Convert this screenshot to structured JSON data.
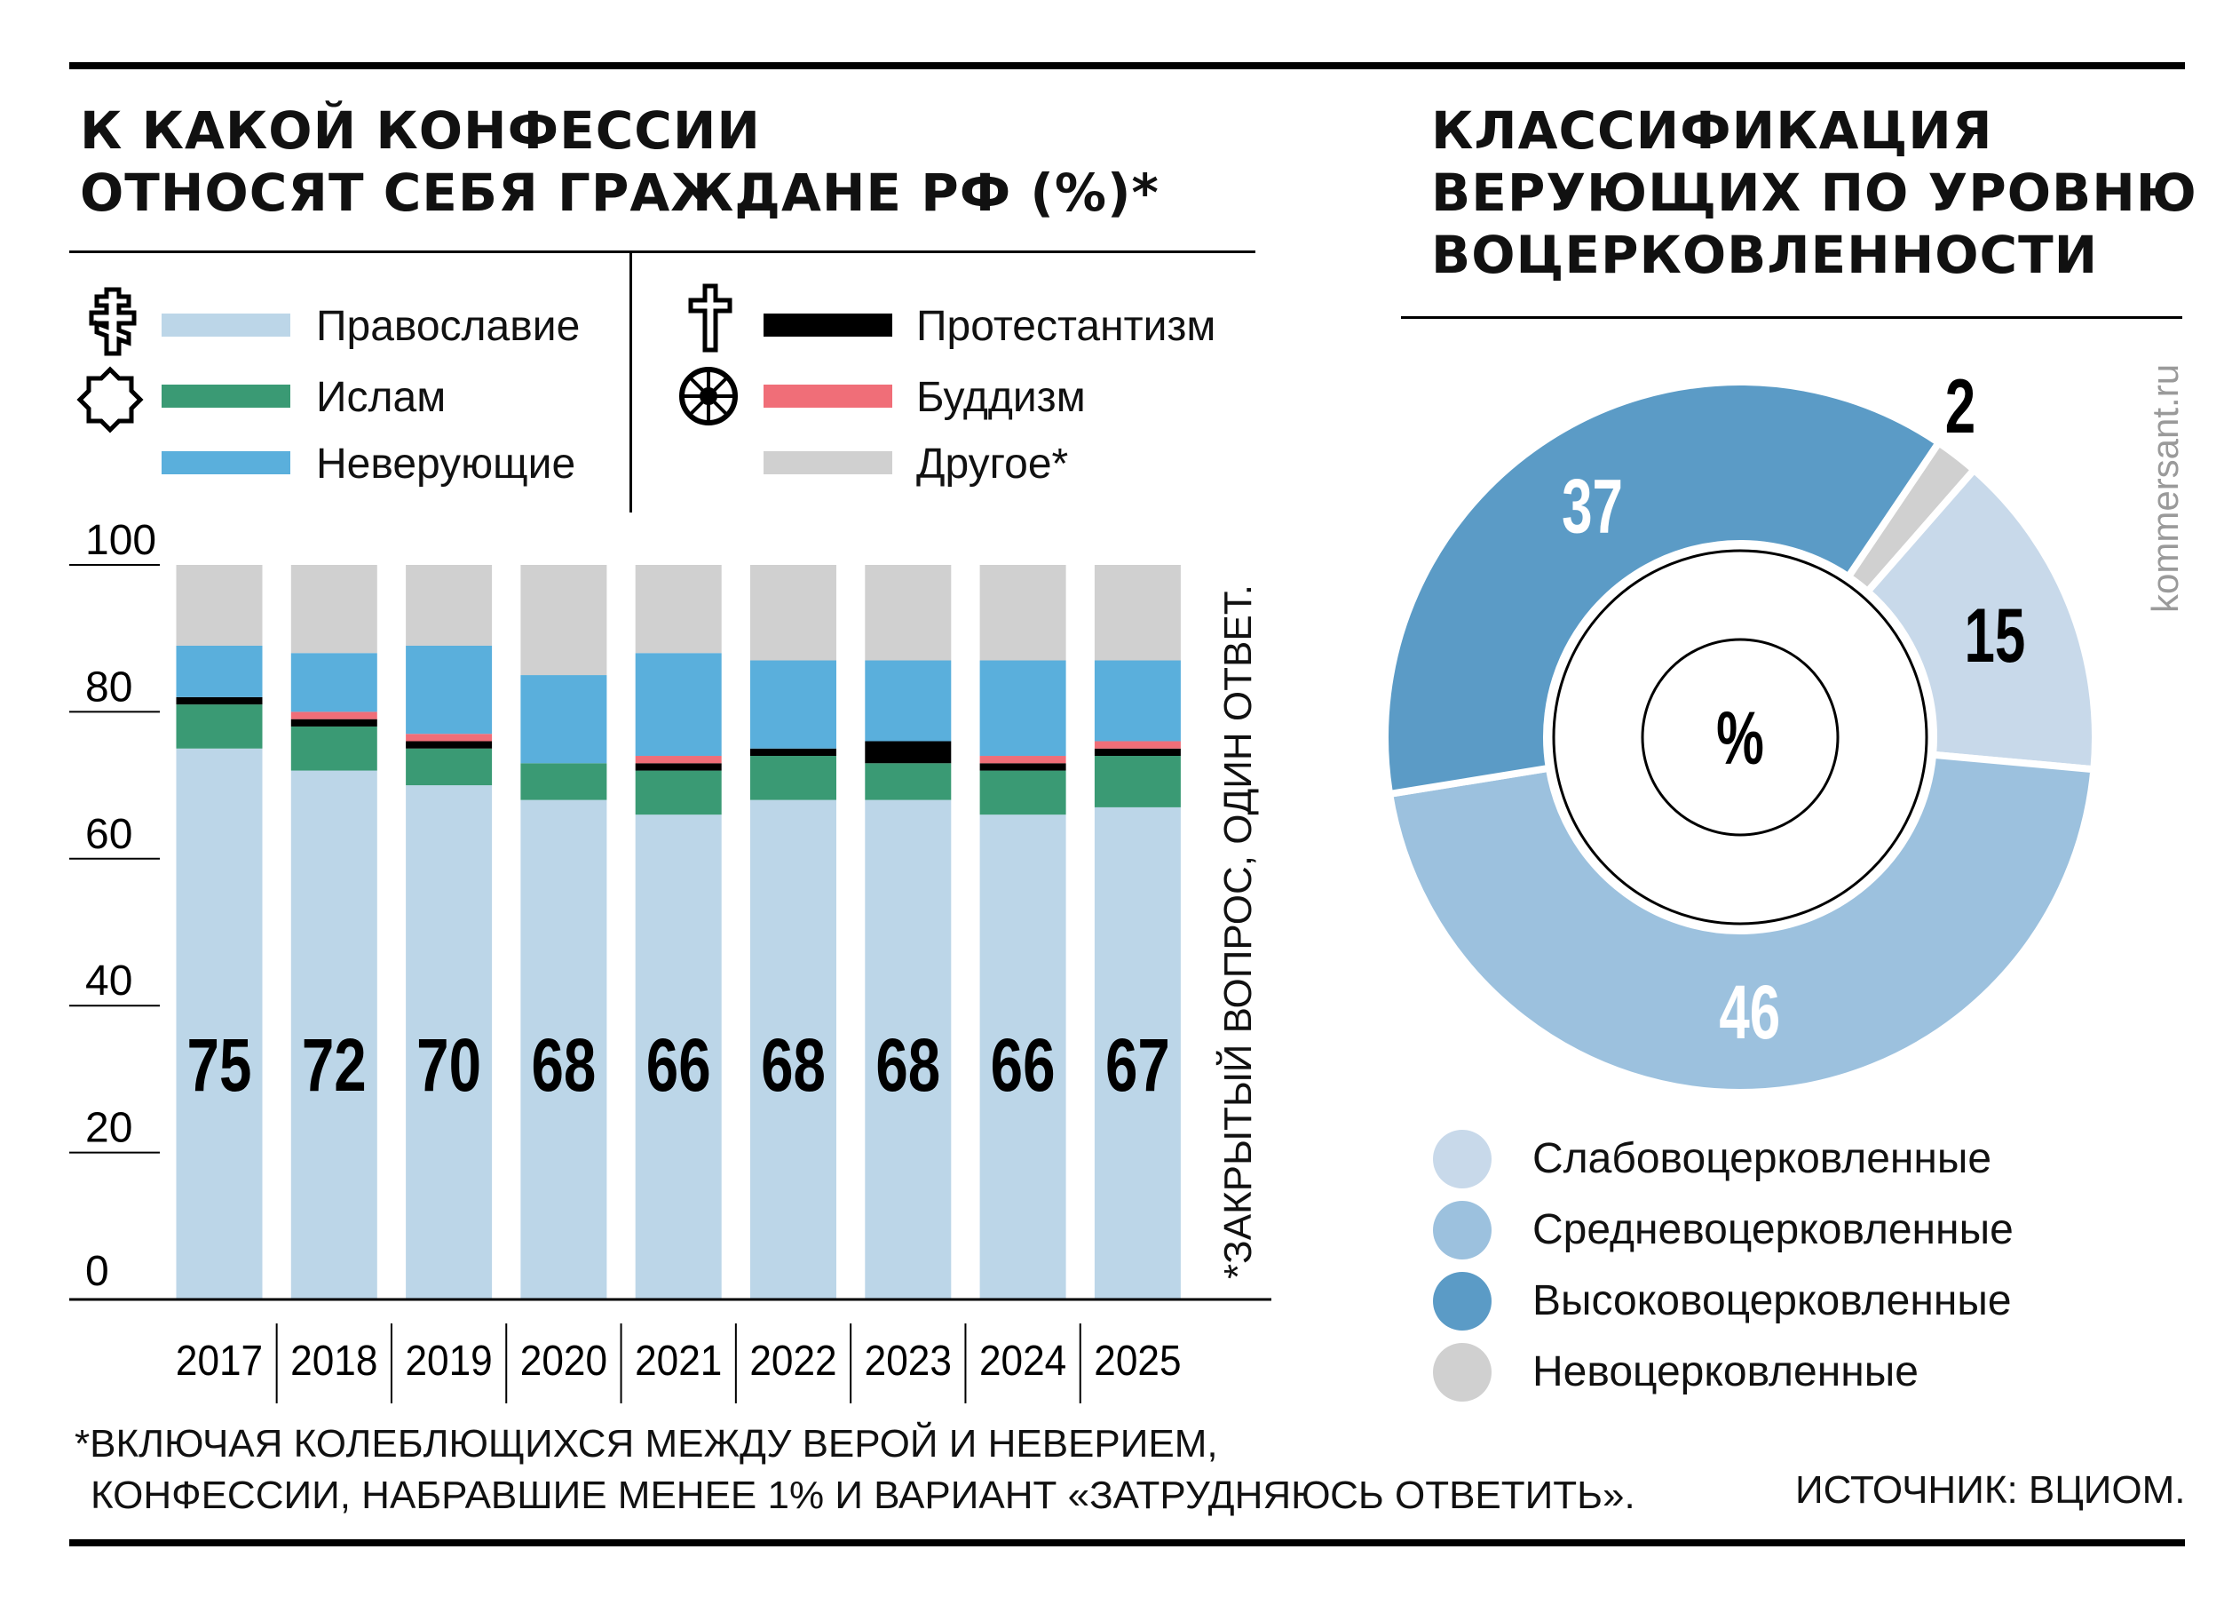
{
  "left_panel": {
    "title_lines": [
      "К КАКОЙ КОНФЕССИИ",
      "ОТНОСЯТ СЕБЯ ГРАЖДАНЕ РФ (%)*"
    ]
  },
  "right_panel": {
    "title_lines": [
      "КЛАССИФИКАЦИЯ",
      "ВЕРУЮЩИХ ПО УРОВНЮ",
      "ВОЦЕРКОВЛЕННОСТИ"
    ]
  },
  "legend": [
    {
      "label": "Православие",
      "color": "#bcd6e8",
      "icon": "orthodox-cross-icon"
    },
    {
      "label": "Ислам",
      "color": "#3a9a74",
      "icon": "rub-el-hizb-star-icon"
    },
    {
      "label": "Неверующие",
      "color": "#5aafdc",
      "icon": ""
    },
    {
      "label": "Протестантизм",
      "color": "#000000",
      "icon": "latin-cross-icon"
    },
    {
      "label": "Буддизм",
      "color": "#f06e78",
      "icon": "dharma-wheel-icon"
    },
    {
      "label": "Другое*",
      "color": "#d0d0d0",
      "icon": ""
    }
  ],
  "vertical_note": "*ЗАКРЫТЫЙ ВОПРОС, ОДИН ОТВЕТ.",
  "footnote_lines": [
    "*ВКЛЮЧАЯ КОЛЕБЛЮЩИХСЯ МЕЖДУ ВЕРОЙ И НЕВЕРИЕМ,",
    "КОНФЕССИИ, НАБРАВШИЕ МЕНЕЕ 1% И ВАРИАНТ «ЗАТРУДНЯЮСЬ ОТВЕТИТЬ»."
  ],
  "source": "ИСТОЧНИК: ВЦИОМ.",
  "site_mark": "kommersant.ru",
  "donut_legend": [
    {
      "label": "Слабовоцерковленные",
      "color": "#c8d9ea"
    },
    {
      "label": "Средневоцерковленные",
      "color": "#9cc1de"
    },
    {
      "label": "Высоковоцерковленные",
      "color": "#5b9bc6"
    },
    {
      "label": "Невоцерковленные",
      "color": "#d0d0d0"
    }
  ],
  "chart_data": [
    {
      "type": "bar",
      "stacked": true,
      "categories": [
        "2017",
        "2018",
        "2019",
        "2020",
        "2021",
        "2022",
        "2023",
        "2024",
        "2025"
      ],
      "ylim": [
        0,
        100
      ],
      "yticks": [
        0,
        20,
        40,
        60,
        80,
        100
      ],
      "grid": false,
      "series": [
        {
          "name": "Православие",
          "color": "#bcd6e8",
          "values": [
            75,
            72,
            70,
            68,
            66,
            68,
            68,
            66,
            67
          ],
          "labeled": true
        },
        {
          "name": "Ислам",
          "color": "#3a9a74",
          "values": [
            6,
            6,
            5,
            5,
            6,
            6,
            5,
            6,
            7
          ]
        },
        {
          "name": "Протестантизм",
          "color": "#000000",
          "values": [
            1,
            1,
            1,
            0,
            1,
            1,
            3,
            1,
            1
          ]
        },
        {
          "name": "Буддизм",
          "color": "#f06e78",
          "values": [
            0,
            1,
            1,
            0,
            1,
            0,
            0,
            1,
            1
          ]
        },
        {
          "name": "Неверующие",
          "color": "#5aafdc",
          "values": [
            7,
            8,
            12,
            12,
            14,
            12,
            11,
            13,
            11
          ]
        },
        {
          "name": "Другое*",
          "color": "#d0d0d0",
          "values": [
            11,
            12,
            11,
            15,
            12,
            13,
            13,
            13,
            13
          ]
        }
      ]
    },
    {
      "type": "pie",
      "donut": true,
      "center_label": "%",
      "slices": [
        {
          "label": "Невоцерковленные",
          "value": 2,
          "color": "#d0d0d0",
          "text_color": "#000000"
        },
        {
          "label": "Слабовоцерковленные",
          "value": 15,
          "color": "#c8d9ea",
          "text_color": "#000000"
        },
        {
          "label": "Средневоцерковленные",
          "value": 46,
          "color": "#9cc1de",
          "text_color": "#ffffff"
        },
        {
          "label": "Высоковоцерковленные",
          "value": 37,
          "color": "#5b9bc6",
          "text_color": "#ffffff"
        }
      ]
    }
  ]
}
